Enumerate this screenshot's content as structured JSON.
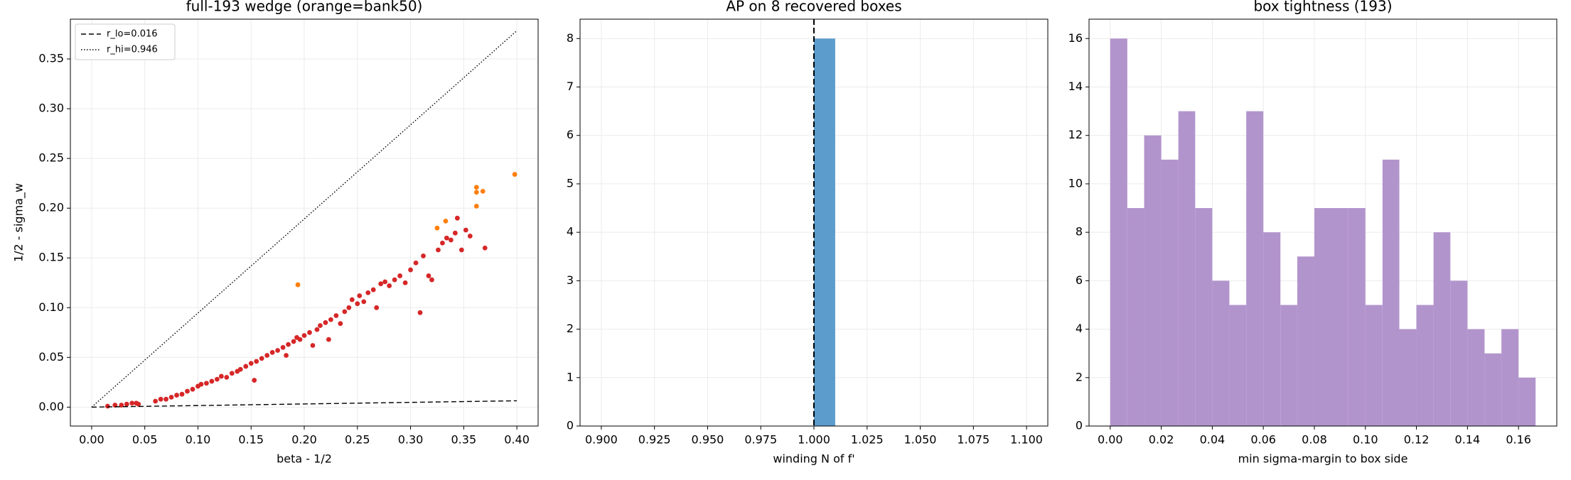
{
  "chart_data": [
    {
      "type": "scatter",
      "title": "full-193 wedge (orange=bank50)",
      "x_label": "beta - 1/2",
      "y_label": "1/2 - sigma_w",
      "xlim": [
        -0.02,
        0.42
      ],
      "ylim": [
        -0.019,
        0.39
      ],
      "xticks": [
        {
          "value": 0,
          "label": "0.00"
        },
        0.05,
        {
          "value": 0.1,
          "label": "0.10"
        },
        0.15,
        {
          "value": 0.2,
          "label": "0.20"
        },
        0.25,
        {
          "value": 0.3,
          "label": "0.30"
        },
        0.35,
        {
          "value": 0.4,
          "label": "0.40"
        }
      ],
      "yticks": [
        {
          "value": 0,
          "label": "0.00"
        },
        0.05,
        {
          "value": 0.1,
          "label": "0.10"
        },
        0.15,
        {
          "value": 0.2,
          "label": "0.20"
        },
        0.25,
        {
          "value": 0.3,
          "label": "0.30"
        },
        0.35
      ],
      "grid": true,
      "legend": "upper left",
      "series": [
        {
          "color": "#d62728",
          "x": [
            0.015,
            0.022,
            0.028,
            0.033,
            0.038,
            0.042,
            0.044,
            0.06,
            0.065,
            0.07,
            0.075,
            0.08,
            0.085,
            0.09,
            0.095,
            0.1,
            0.103,
            0.108,
            0.113,
            0.118,
            0.122,
            0.127,
            0.132,
            0.137,
            0.14,
            0.145,
            0.15,
            0.153,
            0.155,
            0.16,
            0.165,
            0.17,
            0.175,
            0.18,
            0.183,
            0.185,
            0.19,
            0.193,
            0.196,
            0.2,
            0.205,
            0.208,
            0.212,
            0.215,
            0.22,
            0.223,
            0.225,
            0.23,
            0.234,
            0.238,
            0.242,
            0.245,
            0.25,
            0.252,
            0.256,
            0.26,
            0.265,
            0.268,
            0.272,
            0.276,
            0.28,
            0.285,
            0.29,
            0.295,
            0.3,
            0.305,
            0.309,
            0.312,
            0.317,
            0.32,
            0.326,
            0.33,
            0.334,
            0.338,
            0.342,
            0.344,
            0.348,
            0.352,
            0.356,
            0.37
          ],
          "values": [
            0.001,
            0.002,
            0.002,
            0.003,
            0.004,
            0.004,
            0.003,
            0.006,
            0.008,
            0.008,
            0.01,
            0.012,
            0.013,
            0.016,
            0.018,
            0.021,
            0.023,
            0.024,
            0.026,
            0.028,
            0.031,
            0.03,
            0.034,
            0.036,
            0.038,
            0.041,
            0.044,
            0.027,
            0.046,
            0.049,
            0.052,
            0.055,
            0.057,
            0.06,
            0.052,
            0.063,
            0.066,
            0.07,
            0.068,
            0.072,
            0.075,
            0.062,
            0.078,
            0.082,
            0.085,
            0.068,
            0.088,
            0.092,
            0.084,
            0.096,
            0.1,
            0.108,
            0.104,
            0.112,
            0.106,
            0.115,
            0.118,
            0.1,
            0.124,
            0.126,
            0.122,
            0.128,
            0.132,
            0.125,
            0.138,
            0.145,
            0.095,
            0.152,
            0.132,
            0.128,
            0.158,
            0.165,
            0.17,
            0.168,
            0.175,
            0.19,
            0.158,
            0.178,
            0.172,
            0.16
          ]
        },
        {
          "color": "#ff7f0e",
          "x": [
            0.194,
            0.325,
            0.333,
            0.362,
            0.362,
            0.362,
            0.368,
            0.398
          ],
          "values": [
            0.123,
            0.18,
            0.187,
            0.202,
            0.216,
            0.221,
            0.217,
            0.234
          ]
        },
        {
          "name": "r_lo=0.016",
          "color": "#000000",
          "style": "dashed",
          "x": [
            0,
            0.4
          ],
          "values": [
            0,
            0.0064
          ]
        },
        {
          "name": "r_hi=0.946",
          "color": "#000000",
          "style": "dotted",
          "x": [
            0,
            0.4
          ],
          "values": [
            0,
            0.3784
          ]
        }
      ]
    },
    {
      "type": "histogram",
      "title": "AP on 8 recovered boxes",
      "x_label": "winding N of f'",
      "xlim": [
        0.89,
        1.11
      ],
      "ylim": [
        0,
        8.4
      ],
      "xticks": [
        {
          "value": 0.9,
          "label": "0.900"
        },
        0.925,
        {
          "value": 0.95,
          "label": "0.950"
        },
        0.975,
        {
          "value": 1,
          "label": "1.000"
        },
        1.025,
        {
          "value": 1.05,
          "label": "1.050"
        },
        1.075,
        {
          "value": 1.1,
          "label": "1.100"
        }
      ],
      "yticks": [
        0,
        1,
        2,
        3,
        4,
        5,
        6,
        7,
        8
      ],
      "grid": true,
      "bins": [
        1.0,
        1.01
      ],
      "values": [
        8
      ],
      "color": "#5b9ccc",
      "vline": 1
    },
    {
      "type": "histogram",
      "title": "box tightness (193)",
      "x_label": "min sigma-margin to box side",
      "xlim": [
        -0.0083,
        0.175
      ],
      "ylim": [
        0,
        16.8
      ],
      "xticks": [
        {
          "value": 0,
          "label": "0.00"
        },
        0.02,
        0.04,
        0.06,
        0.08,
        {
          "value": 0.1,
          "label": "0.10"
        },
        0.12,
        0.14,
        0.16
      ],
      "yticks": [
        0,
        2,
        4,
        6,
        8,
        10,
        12,
        14,
        16
      ],
      "grid": true,
      "bins": [
        0,
        0.0067,
        0.0133,
        0.02,
        0.0267,
        0.0333,
        0.04,
        0.0467,
        0.0533,
        0.06,
        0.0667,
        0.0733,
        0.08,
        0.0867,
        0.0933,
        0.1,
        0.1067,
        0.1133,
        0.12,
        0.1267,
        0.1333,
        0.14,
        0.1467,
        0.1533,
        0.16,
        0.1667
      ],
      "values": [
        16,
        9,
        12,
        11,
        13,
        9,
        6,
        5,
        13,
        8,
        5,
        7,
        9,
        9,
        9,
        5,
        11,
        4,
        5,
        8,
        6,
        4,
        3,
        4,
        2
      ],
      "color": "#b294cd"
    }
  ]
}
